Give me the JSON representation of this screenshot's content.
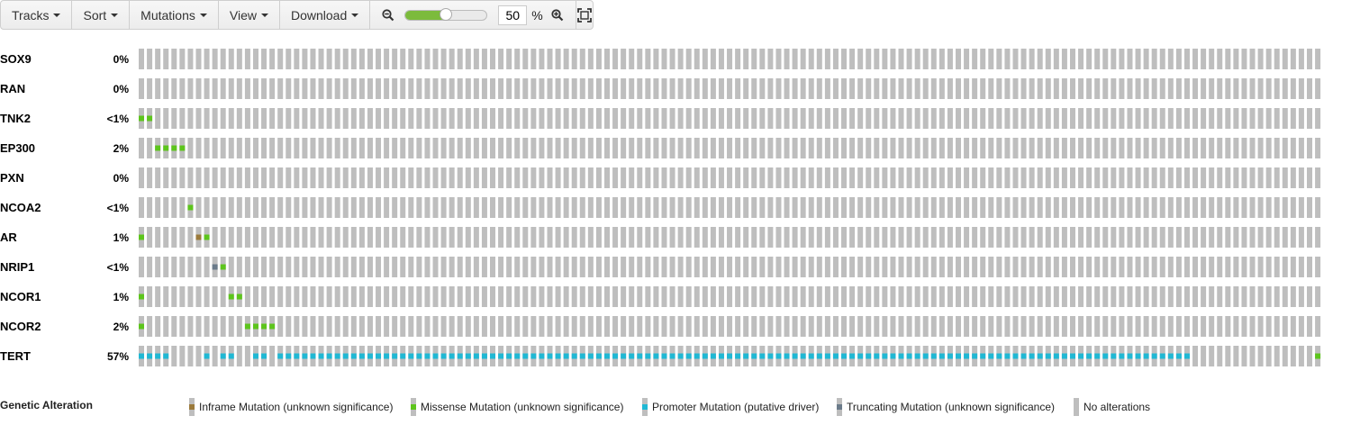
{
  "toolbar": {
    "tracks_label": "Tracks",
    "sort_label": "Sort",
    "mutations_label": "Mutations",
    "view_label": "View",
    "download_label": "Download",
    "zoom_value": "50",
    "zoom_unit": "%",
    "zoom_slider_fraction": 0.5
  },
  "colors": {
    "no_alteration": "#bebebe",
    "inframe": "#9b7a3b",
    "missense": "#5dc51c",
    "promoter": "#20b8d4",
    "truncating": "#6b7b8a",
    "accent_slider": "#7cbb3c"
  },
  "oncoprint": {
    "sample_count": 145,
    "tracks": [
      {
        "gene": "SOX9",
        "percent": "0%",
        "alterations": []
      },
      {
        "gene": "RAN",
        "percent": "0%",
        "alterations": []
      },
      {
        "gene": "TNK2",
        "percent": "<1%",
        "alterations": [
          [
            0,
            "missense"
          ],
          [
            1,
            "missense"
          ]
        ]
      },
      {
        "gene": "EP300",
        "percent": "2%",
        "alterations": [
          [
            2,
            "missense"
          ],
          [
            3,
            "missense"
          ],
          [
            4,
            "missense"
          ],
          [
            5,
            "missense"
          ]
        ]
      },
      {
        "gene": "PXN",
        "percent": "0%",
        "alterations": []
      },
      {
        "gene": "NCOA2",
        "percent": "<1%",
        "alterations": [
          [
            6,
            "missense"
          ]
        ]
      },
      {
        "gene": "AR",
        "percent": "1%",
        "alterations": [
          [
            0,
            "missense"
          ],
          [
            7,
            "inframe"
          ],
          [
            8,
            "missense"
          ]
        ]
      },
      {
        "gene": "NRIP1",
        "percent": "<1%",
        "alterations": [
          [
            9,
            "truncating"
          ],
          [
            10,
            "missense"
          ]
        ]
      },
      {
        "gene": "NCOR1",
        "percent": "1%",
        "alterations": [
          [
            0,
            "missense"
          ],
          [
            11,
            "missense"
          ],
          [
            12,
            "missense"
          ]
        ]
      },
      {
        "gene": "NCOR2",
        "percent": "2%",
        "alterations": [
          [
            0,
            "missense"
          ],
          [
            13,
            "missense"
          ],
          [
            14,
            "missense"
          ],
          [
            15,
            "missense"
          ],
          [
            16,
            "missense"
          ]
        ]
      },
      {
        "gene": "TERT",
        "percent": "57%",
        "promoter_ranges": [
          [
            0,
            3
          ],
          [
            8,
            8
          ],
          [
            10,
            11
          ],
          [
            14,
            15
          ],
          [
            17,
            128
          ]
        ],
        "alterations": [
          [
            144,
            "missense"
          ]
        ]
      }
    ]
  },
  "legend": {
    "title": "Genetic Alteration",
    "items": [
      {
        "label": "Inframe Mutation (unknown significance)",
        "type": "inframe"
      },
      {
        "label": "Missense Mutation (unknown significance)",
        "type": "missense"
      },
      {
        "label": "Promoter Mutation (putative driver)",
        "type": "promoter"
      },
      {
        "label": "Truncating Mutation (unknown significance)",
        "type": "truncating"
      },
      {
        "label": "No alterations",
        "type": "none"
      }
    ]
  }
}
